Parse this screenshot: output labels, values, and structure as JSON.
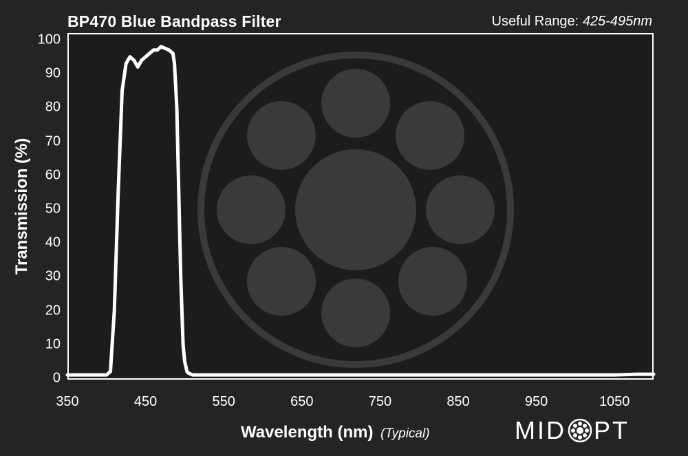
{
  "header": {
    "title": "BP470 Blue Bandpass Filter",
    "range_label": "Useful Range:",
    "range_value": "425-495nm"
  },
  "footer": {
    "typical_note": "(Typical)",
    "logo_left": "MID",
    "logo_right": "PT",
    "logo_icon": "filter-wheel-icon"
  },
  "colors": {
    "background": "#242424",
    "plot_background": "#1c1c1c",
    "curve": "#ffffff",
    "watermark": "#3a3a3a"
  },
  "chart_data": {
    "type": "line",
    "title": "BP470 Blue Bandpass Filter",
    "xlabel": "Wavelength (nm)",
    "ylabel": "Transmission (%)",
    "xlim": [
      350,
      1100
    ],
    "ylim": [
      0,
      100
    ],
    "xticks": [
      350,
      450,
      550,
      650,
      750,
      850,
      950,
      1050
    ],
    "yticks": [
      0,
      10,
      20,
      30,
      40,
      50,
      60,
      70,
      80,
      90,
      100
    ],
    "grid": false,
    "series": [
      {
        "x": [
          350,
          400,
          405,
          410,
          415,
          420,
          425,
          430,
          435,
          440,
          445,
          450,
          455,
          460,
          465,
          470,
          475,
          480,
          485,
          487,
          490,
          493,
          495,
          498,
          500,
          503,
          505,
          510,
          520,
          560,
          600,
          650,
          690,
          700,
          750,
          800,
          870,
          900,
          950,
          1000,
          1050,
          1080,
          1100
        ],
        "y": [
          1,
          1,
          2,
          20,
          55,
          85,
          93,
          95,
          94,
          92,
          94,
          95,
          96,
          97,
          97,
          98,
          97.5,
          97,
          96,
          93,
          80,
          50,
          30,
          10,
          5,
          2,
          1.5,
          1,
          1,
          1,
          1,
          1,
          1,
          1,
          1,
          1,
          1,
          1,
          1,
          1,
          1,
          1.2,
          1.2
        ]
      }
    ]
  }
}
